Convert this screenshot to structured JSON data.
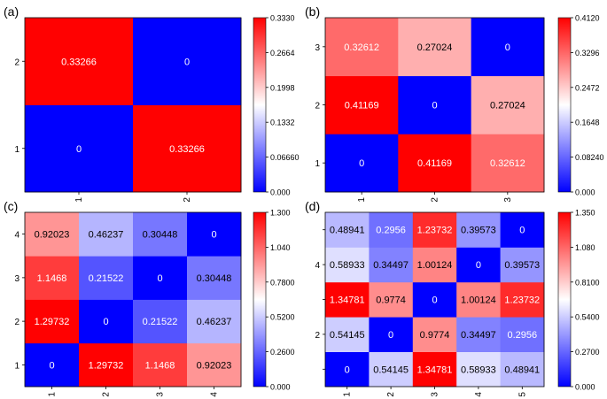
{
  "colors": {
    "low": "#0000ff",
    "mid": "#ffffff",
    "high": "#ff0000",
    "cell_text_light": "#ffffff",
    "cell_text_dark": "#000000"
  },
  "chart_data": [
    {
      "type": "heatmap",
      "panel_label": "(a)",
      "x_labels": [
        "1",
        "2"
      ],
      "y_labels": [
        "1",
        "2"
      ],
      "values": [
        [
          0,
          0.33266
        ],
        [
          0.33266,
          0
        ]
      ],
      "value_labels": [
        [
          "0",
          "0.33266"
        ],
        [
          "0.33266",
          "0"
        ]
      ],
      "color_range": [
        0,
        0.333
      ],
      "colorbar_ticks": [
        "0.000",
        "0.06660",
        "0.1332",
        "0.1998",
        "0.2664",
        "0.3330"
      ],
      "colorbar_tick_values": [
        0,
        0.0666,
        0.1332,
        0.1998,
        0.2664,
        0.333
      ]
    },
    {
      "type": "heatmap",
      "panel_label": "(b)",
      "x_labels": [
        "1",
        "2",
        "3"
      ],
      "y_labels": [
        "1",
        "2",
        "3"
      ],
      "values": [
        [
          0,
          0.41169,
          0.32612
        ],
        [
          0.41169,
          0,
          0.27024
        ],
        [
          0.32612,
          0.27024,
          0
        ]
      ],
      "value_labels": [
        [
          "0",
          "0.41169",
          "0.32612"
        ],
        [
          "0.41169",
          "0",
          "0.27024"
        ],
        [
          "0.32612",
          "0.27024",
          "0"
        ]
      ],
      "color_range": [
        0,
        0.412
      ],
      "colorbar_ticks": [
        "0.000",
        "0.08240",
        "0.1648",
        "0.2472",
        "0.3296",
        "0.4120"
      ],
      "colorbar_tick_values": [
        0,
        0.0824,
        0.1648,
        0.2472,
        0.3296,
        0.412
      ]
    },
    {
      "type": "heatmap",
      "panel_label": "(c)",
      "x_labels": [
        "1",
        "2",
        "3",
        "4"
      ],
      "y_labels": [
        "1",
        "2",
        "3",
        "4"
      ],
      "values": [
        [
          0,
          1.29732,
          1.1468,
          0.92023
        ],
        [
          1.29732,
          0,
          0.21522,
          0.46237
        ],
        [
          1.1468,
          0.21522,
          0,
          0.30448
        ],
        [
          0.92023,
          0.46237,
          0.30448,
          0
        ]
      ],
      "value_labels": [
        [
          "0",
          "1.29732",
          "1.1468",
          "0.92023"
        ],
        [
          "1.29732",
          "0",
          "0.21522",
          "0.46237"
        ],
        [
          "1.1468",
          "0.21522",
          "0",
          "0.30448"
        ],
        [
          "0.92023",
          "0.46237",
          "0.30448",
          "0"
        ]
      ],
      "color_range": [
        0,
        1.3
      ],
      "colorbar_ticks": [
        "0.000",
        "0.2600",
        "0.5200",
        "0.7800",
        "1.040",
        "1.300"
      ],
      "colorbar_tick_values": [
        0,
        0.26,
        0.52,
        0.78,
        1.04,
        1.3
      ]
    },
    {
      "type": "heatmap",
      "panel_label": "(d)",
      "x_labels": [
        "1",
        "2",
        "3",
        "4",
        "5"
      ],
      "y_labels": [
        "",
        "2",
        "",
        "4",
        ""
      ],
      "values": [
        [
          0,
          0.54145,
          1.34781,
          0.58933,
          0.48941
        ],
        [
          0.54145,
          0,
          0.9774,
          0.34497,
          0.2956
        ],
        [
          1.34781,
          0.9774,
          0,
          1.00124,
          1.23732
        ],
        [
          0.58933,
          0.34497,
          1.00124,
          0,
          0.39573
        ],
        [
          0.48941,
          0.2956,
          1.23732,
          0.39573,
          0
        ]
      ],
      "value_labels": [
        [
          "0",
          "0.54145",
          "1.34781",
          "0.58933",
          "0.48941"
        ],
        [
          "0.54145",
          "0",
          "0.9774",
          "0.34497",
          "0.2956"
        ],
        [
          "1.34781",
          "0.9774",
          "0",
          "1.00124",
          "1.23732"
        ],
        [
          "0.58933",
          "0.34497",
          "1.00124",
          "0",
          "0.39573"
        ],
        [
          "0.48941",
          "0.2956",
          "1.23732",
          "0.39573",
          "0"
        ]
      ],
      "color_range": [
        0,
        1.35
      ],
      "colorbar_ticks": [
        "0.000",
        "0.2700",
        "0.5400",
        "0.8100",
        "1.080",
        "1.350"
      ],
      "colorbar_tick_values": [
        0,
        0.27,
        0.54,
        0.81,
        1.08,
        1.35
      ]
    }
  ]
}
